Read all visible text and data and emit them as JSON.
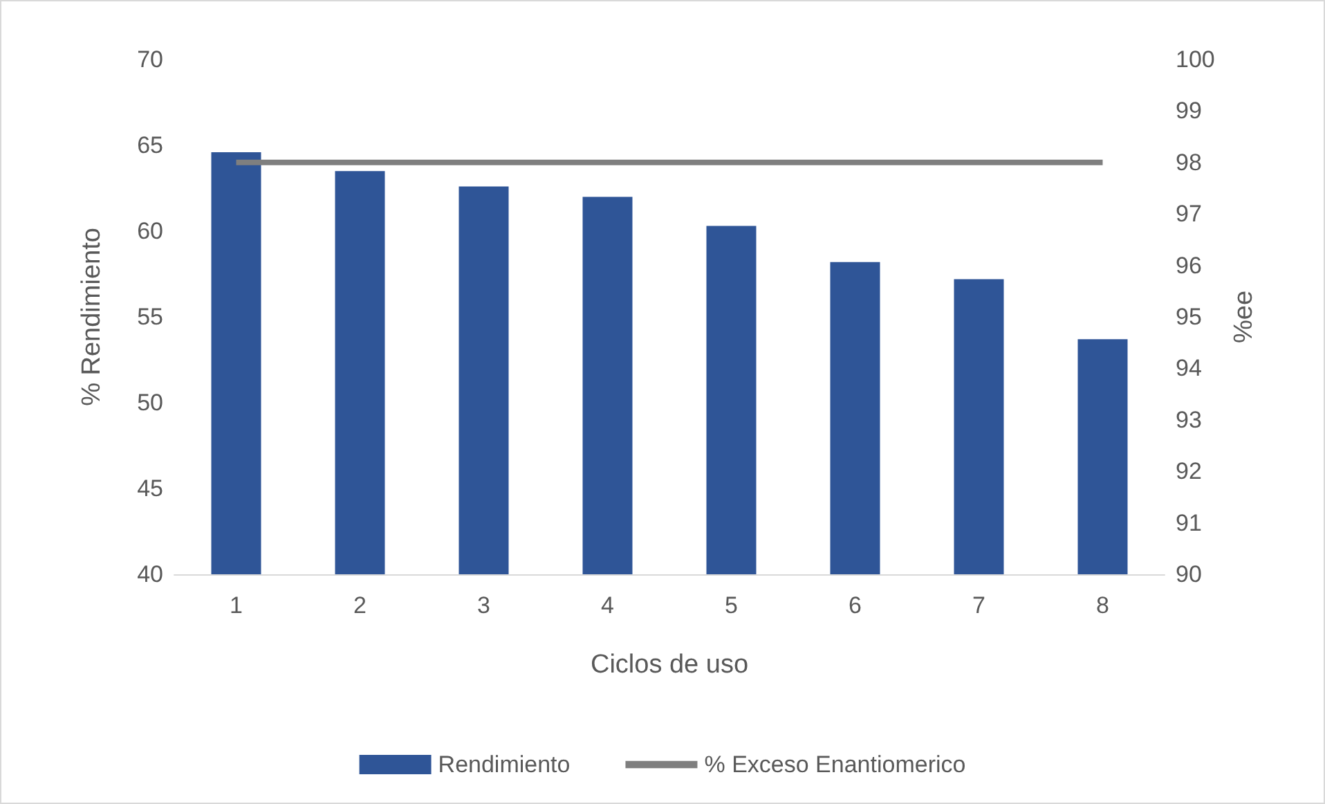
{
  "chart_data": {
    "type": "bar",
    "categories": [
      "1",
      "2",
      "3",
      "4",
      "5",
      "6",
      "7",
      "8"
    ],
    "xlabel": "Ciclos de uso",
    "ylabel": "% Rendimiento",
    "y2label": "%ee",
    "series": [
      {
        "name": "Rendimiento",
        "color": "#2f5597",
        "values": [
          64.6,
          63.5,
          62.6,
          62.0,
          60.3,
          58.2,
          57.2,
          53.7
        ]
      },
      {
        "name": "% Exceso Enantiomerico",
        "type": "line",
        "axis": "y2",
        "color": "#7f7f7f",
        "values": [
          98,
          98,
          98,
          98,
          98,
          98,
          98,
          98
        ]
      }
    ],
    "ylim": [
      40,
      70
    ],
    "yticks": [
      40,
      45,
      50,
      55,
      60,
      65,
      70
    ],
    "y2lim": [
      90,
      100
    ],
    "y2ticks": [
      90,
      91,
      92,
      93,
      94,
      95,
      96,
      97,
      98,
      99,
      100
    ],
    "legend": "bottom",
    "grid": false,
    "marker": "none",
    "line_style": "solid"
  }
}
